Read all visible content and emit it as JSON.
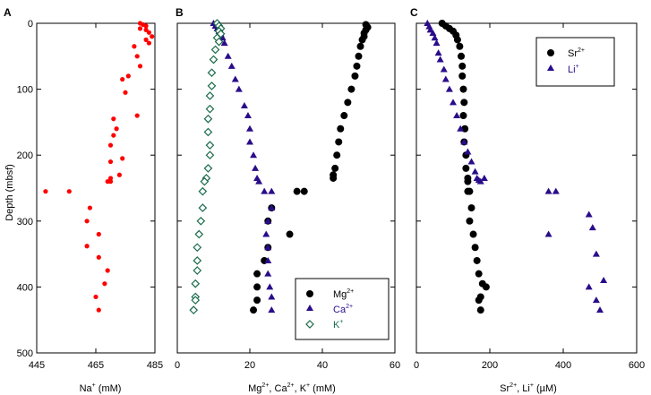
{
  "shared": {
    "ylabel": "Depth (mbsf)",
    "y_ticks": [
      0,
      100,
      200,
      300,
      400,
      500
    ],
    "ylim": [
      0,
      500
    ],
    "y_inverted": true
  },
  "panels": [
    {
      "letter": "A",
      "xlabel_main": "Na",
      "xlabel_sup": "+",
      "xlabel_unit": " (mM)",
      "x_ticks": [
        445,
        465,
        485
      ]
    },
    {
      "letter": "B",
      "xlabel_parts": [
        "Mg",
        "2+",
        ", Ca",
        "2+",
        ", K",
        "+",
        " (mM)"
      ],
      "x_ticks": [
        0,
        20,
        40,
        60
      ]
    },
    {
      "letter": "C",
      "xlabel_parts": [
        "Sr",
        "2+",
        ", Li",
        "+",
        " (µM)"
      ],
      "x_ticks": [
        0,
        200,
        400,
        600
      ]
    }
  ],
  "legend_b": [
    {
      "main": "Mg",
      "sup": "2+",
      "marker": "circle",
      "color": "#000000"
    },
    {
      "main": "Ca",
      "sup": "2+",
      "marker": "triangle",
      "color": "#2a0c8a"
    },
    {
      "main": "K",
      "sup": "+",
      "marker": "diamond",
      "color": "#1a6b4a"
    }
  ],
  "legend_c": [
    {
      "main": "Sr",
      "sup": "2+",
      "marker": "circle",
      "color": "#000000"
    },
    {
      "main": "Li",
      "sup": "+",
      "marker": "triangle",
      "color": "#2a0c8a"
    }
  ],
  "chart_data": [
    {
      "type": "scatter",
      "panel": "A",
      "xlim": [
        445,
        485
      ],
      "ylim": [
        0,
        500
      ],
      "series": [
        {
          "name": "Na+",
          "color": "#ff0000",
          "marker": "circle",
          "x": [
            480,
            481,
            482,
            480,
            482,
            483,
            484,
            482,
            483,
            478,
            479,
            480,
            476,
            474,
            475,
            479,
            471,
            472,
            471,
            470,
            474,
            470,
            470,
            473,
            469,
            470,
            448,
            456,
            463,
            462,
            466,
            462,
            466,
            469,
            468,
            465,
            466
          ],
          "y": [
            0,
            2,
            4,
            8,
            10,
            14,
            20,
            25,
            30,
            35,
            50,
            65,
            80,
            85,
            105,
            140,
            145,
            160,
            170,
            185,
            205,
            210,
            235,
            230,
            240,
            240,
            255,
            255,
            280,
            300,
            320,
            338,
            355,
            375,
            395,
            415,
            435
          ]
        }
      ]
    },
    {
      "type": "scatter",
      "panel": "B",
      "xlim": [
        0,
        60
      ],
      "ylim": [
        0,
        500
      ],
      "series": [
        {
          "name": "Mg2+",
          "color": "#000000",
          "marker": "circle",
          "x": [
            52,
            52.5,
            52,
            51.5,
            51.5,
            51,
            50.5,
            50,
            49.5,
            49,
            48,
            47,
            46,
            45,
            44.5,
            44,
            43.5,
            43,
            43,
            35,
            33,
            26,
            31,
            25,
            25,
            24,
            22,
            22,
            22,
            21
          ],
          "y": [
            2,
            6,
            10,
            15,
            20,
            25,
            35,
            50,
            65,
            80,
            100,
            120,
            140,
            160,
            180,
            200,
            220,
            230,
            235,
            255,
            255,
            280,
            320,
            300,
            340,
            360,
            380,
            400,
            420,
            435
          ]
        },
        {
          "name": "Ca2+",
          "color": "#2a0c8a",
          "marker": "triangle",
          "x": [
            10,
            10.5,
            11,
            11.5,
            12,
            12.5,
            13,
            14,
            15,
            16,
            17,
            18.5,
            19.5,
            20,
            20,
            21,
            21.5,
            22,
            22.5,
            24,
            26,
            26,
            25,
            24.5,
            25,
            25,
            25,
            25.5,
            26,
            26
          ],
          "y": [
            0,
            4,
            8,
            12,
            16,
            22,
            30,
            50,
            65,
            85,
            100,
            125,
            140,
            160,
            180,
            200,
            220,
            235,
            240,
            255,
            255,
            280,
            300,
            320,
            340,
            360,
            380,
            400,
            415,
            435
          ]
        },
        {
          "name": "K+",
          "color": "#1a6b4a",
          "marker": "diamond",
          "x": [
            11,
            11.5,
            12,
            11.5,
            12,
            11,
            11.5,
            10.5,
            10,
            9.5,
            9.5,
            9,
            9,
            8.5,
            8.5,
            9,
            9,
            8.5,
            8,
            7.5,
            7,
            7,
            6.5,
            6,
            5.5,
            5.5,
            5.5,
            5,
            5,
            5,
            4.5
          ],
          "y": [
            0,
            4,
            8,
            12,
            16,
            22,
            28,
            40,
            55,
            75,
            95,
            110,
            130,
            145,
            165,
            185,
            200,
            220,
            235,
            240,
            255,
            280,
            300,
            320,
            340,
            360,
            375,
            395,
            415,
            420,
            435
          ]
        }
      ]
    },
    {
      "type": "scatter",
      "panel": "C",
      "xlim": [
        0,
        600
      ],
      "ylim": [
        0,
        500
      ],
      "series": [
        {
          "name": "Sr2+",
          "color": "#000000",
          "marker": "circle",
          "x": [
            70,
            80,
            90,
            100,
            108,
            112,
            118,
            122,
            125,
            125,
            128,
            130,
            128,
            132,
            130,
            135,
            135,
            140,
            140,
            140,
            145,
            150,
            145,
            155,
            160,
            165,
            170,
            180,
            190,
            175,
            170,
            175
          ],
          "y": [
            0,
            4,
            8,
            12,
            18,
            25,
            35,
            50,
            65,
            80,
            100,
            120,
            140,
            160,
            180,
            200,
            220,
            235,
            240,
            255,
            255,
            280,
            300,
            320,
            340,
            360,
            380,
            395,
            400,
            415,
            420,
            435
          ]
        },
        {
          "name": "Li+",
          "color": "#2a0c8a",
          "marker": "triangle",
          "x": [
            30,
            35,
            38,
            45,
            50,
            55,
            60,
            65,
            75,
            80,
            90,
            100,
            110,
            120,
            130,
            140,
            150,
            160,
            165,
            170,
            175,
            185,
            360,
            380,
            470,
            360,
            480,
            490,
            510,
            470,
            490,
            500
          ],
          "y": [
            0,
            5,
            10,
            15,
            22,
            30,
            45,
            55,
            70,
            85,
            100,
            120,
            140,
            160,
            180,
            195,
            210,
            225,
            235,
            238,
            240,
            235,
            255,
            255,
            290,
            320,
            310,
            350,
            390,
            400,
            420,
            435
          ]
        }
      ]
    }
  ]
}
